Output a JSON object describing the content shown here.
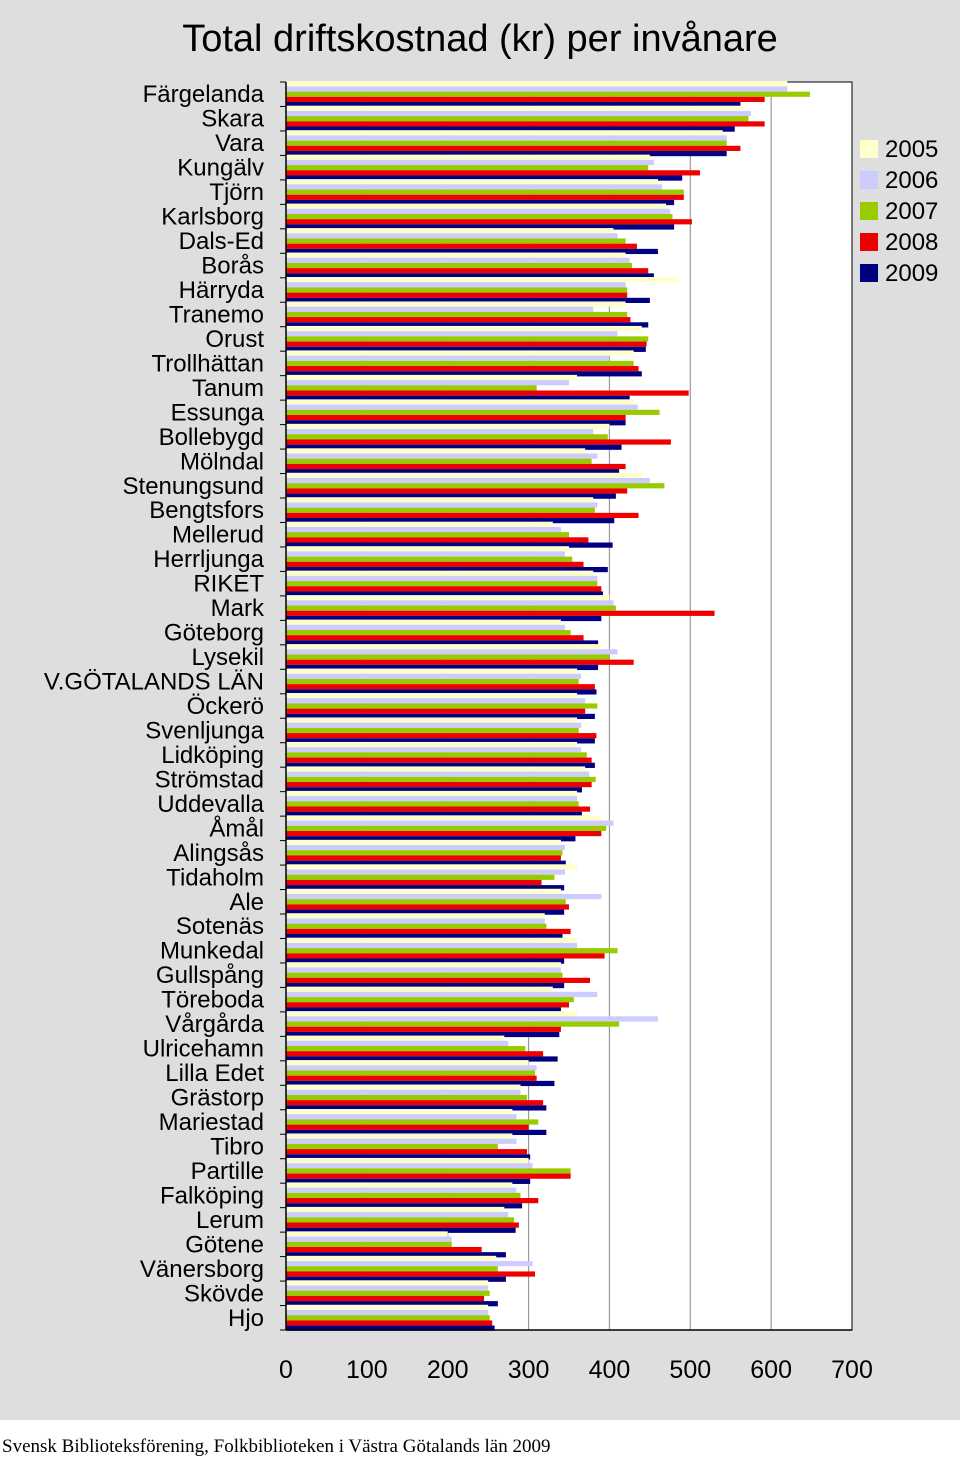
{
  "chart_data": {
    "type": "bar",
    "orientation": "horizontal",
    "title": "Total driftskostnad (kr) per invånare",
    "source": "Svensk Biblioteksförening, Folkbiblioteken i Västra Götalands län 2009",
    "xlim": [
      0,
      700
    ],
    "xticks": [
      0,
      100,
      200,
      300,
      400,
      500,
      600,
      700
    ],
    "grid": true,
    "legend_position": "right",
    "categories": [
      "Färgelanda",
      "Skara",
      "Vara",
      "Kungälv",
      "Tjörn",
      "Karlsborg",
      "Dals-Ed",
      "Borås",
      "Härryda",
      "Tranemo",
      "Orust",
      "Trollhättan",
      "Tanum",
      "Essunga",
      "Bollebygd",
      "Mölndal",
      "Stenungsund",
      "Bengtsfors",
      "Mellerud",
      "Herrljunga",
      "RIKET",
      "Mark",
      "Göteborg",
      "Lysekil",
      "V.GÖTALANDS LÄN",
      "Öckerö",
      "Svenljunga",
      "Lidköping",
      "Strömstad",
      "Uddevalla",
      "Åmål",
      "Alingsås",
      "Tidaholm",
      "Ale",
      "Sotenäs",
      "Munkedal",
      "Gullspång",
      "Töreboda",
      "Vårgårda",
      "Ulricehamn",
      "Lilla Edet",
      "Grästorp",
      "Mariestad",
      "Tibro",
      "Partille",
      "Falköping",
      "Lerum",
      "Götene",
      "Vänersborg",
      "Skövde",
      "Hjo"
    ],
    "series": [
      {
        "name": "2005",
        "color": "#ffffcc",
        "values": [
          620,
          565,
          540,
          450,
          460,
          470,
          405,
          420,
          485,
          420,
          440,
          430,
          360,
          430,
          400,
          370,
          440,
          380,
          330,
          350,
          380,
          400,
          340,
          390,
          360,
          360,
          360,
          360,
          370,
          360,
          390,
          340,
          360,
          340,
          320,
          360,
          340,
          330,
          360,
          270,
          300,
          290,
          280,
          280,
          300,
          280,
          270,
          200,
          260,
          250,
          250
        ]
      },
      {
        "name": "2006",
        "color": "#ccccff",
        "values": [
          620,
          575,
          545,
          455,
          465,
          475,
          410,
          425,
          420,
          380,
          410,
          400,
          350,
          435,
          380,
          385,
          450,
          385,
          340,
          345,
          385,
          405,
          345,
          410,
          365,
          370,
          365,
          365,
          375,
          360,
          405,
          345,
          345,
          390,
          320,
          360,
          340,
          385,
          460,
          275,
          310,
          290,
          285,
          285,
          305,
          285,
          275,
          205,
          305,
          250,
          250
        ]
      },
      {
        "name": "2007",
        "color": "#99cc00",
        "values": [
          648,
          572,
          545,
          448,
          492,
          478,
          420,
          428,
          422,
          422,
          448,
          430,
          310,
          462,
          398,
          378,
          468,
          382,
          350,
          354,
          385,
          408,
          352,
          400,
          362,
          385,
          362,
          372,
          383,
          362,
          396,
          342,
          332,
          346,
          322,
          410,
          342,
          356,
          412,
          296,
          308,
          298,
          312,
          262,
          352,
          290,
          282,
          205,
          262,
          252,
          252
        ]
      },
      {
        "name": "2008",
        "color": "#ee0000",
        "values": [
          592,
          592,
          562,
          512,
          492,
          502,
          434,
          448,
          422,
          426,
          446,
          436,
          498,
          420,
          476,
          420,
          422,
          436,
          374,
          368,
          390,
          530,
          368,
          430,
          382,
          370,
          384,
          378,
          378,
          376,
          390,
          340,
          316,
          350,
          352,
          394,
          376,
          350,
          340,
          318,
          310,
          318,
          300,
          298,
          352,
          312,
          288,
          242,
          308,
          245,
          255
        ]
      },
      {
        "name": "2009",
        "color": "#000080",
        "values": [
          562,
          555,
          545,
          490,
          480,
          480,
          460,
          455,
          450,
          448,
          445,
          440,
          425,
          420,
          415,
          412,
          408,
          406,
          404,
          398,
          392,
          390,
          386,
          386,
          384,
          382,
          382,
          382,
          366,
          366,
          358,
          346,
          344,
          344,
          342,
          344,
          344,
          340,
          338,
          336,
          332,
          322,
          322,
          302,
          302,
          292,
          284,
          272,
          272,
          262,
          258
        ]
      }
    ]
  }
}
